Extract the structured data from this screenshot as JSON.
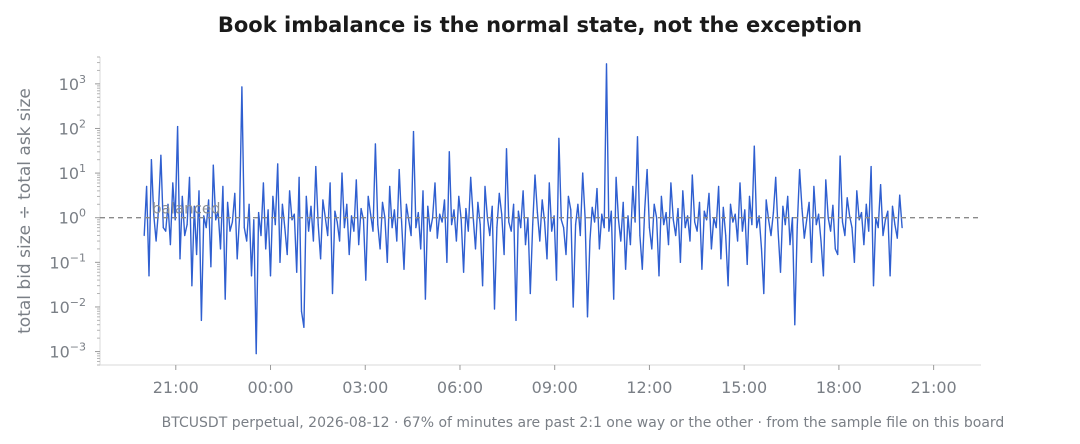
{
  "chart_data": {
    "type": "line",
    "title": "Book imbalance is the normal state, not the exception",
    "ylabel": "total bid size ÷ total ask size",
    "xlabel": "",
    "footnote": "BTCUSDT perpetual, 2026-08-12  ·  67% of minutes are past 2:1 one way or the other  ·  from the sample file on this board",
    "y_scale": "log",
    "ylim": [
      0.0005,
      4000
    ],
    "y_ticks": [
      {
        "base": "10",
        "exp": "3",
        "value": 1000
      },
      {
        "base": "10",
        "exp": "2",
        "value": 100
      },
      {
        "base": "10",
        "exp": "1",
        "value": 10
      },
      {
        "base": "10",
        "exp": "0",
        "value": 1
      },
      {
        "base": "10",
        "exp": "−1",
        "value": 0.1
      },
      {
        "base": "10",
        "exp": "−2",
        "value": 0.01
      },
      {
        "base": "10",
        "exp": "−3",
        "value": 0.001
      }
    ],
    "x_ticks": [
      "21:00",
      "00:00",
      "03:00",
      "06:00",
      "09:00",
      "12:00",
      "15:00",
      "18:00",
      "21:00"
    ],
    "x_tick_hours": [
      21,
      24,
      27,
      30,
      33,
      36,
      39,
      42,
      45
    ],
    "xlim_hours": [
      18.6,
      46.5
    ],
    "reference_line": {
      "value": 1,
      "label": "balanced",
      "style": "dashed"
    },
    "series": [
      {
        "color": "#2f5fd0",
        "x_start": "2026-08-12 20:00",
        "x_end": "2026-08-13 20:00",
        "interval": "1 min",
        "values": [
          0.4,
          5.0,
          0.05,
          20.0,
          1.2,
          0.3,
          1.5,
          25.0,
          0.6,
          0.5,
          2.0,
          0.25,
          6.0,
          0.9,
          110.0,
          0.12,
          3.0,
          0.4,
          0.7,
          8.0,
          0.03,
          1.8,
          0.15,
          4.0,
          0.005,
          1.1,
          0.6,
          2.5,
          0.08,
          15.0,
          0.9,
          1.4,
          0.2,
          5.0,
          0.015,
          2.2,
          0.5,
          0.8,
          3.5,
          0.12,
          1.0,
          850.0,
          0.6,
          0.3,
          2.0,
          0.05,
          0.9,
          0.0009,
          1.3,
          0.4,
          6.0,
          0.2,
          1.5,
          0.05,
          3.0,
          0.7,
          16.0,
          0.1,
          2.0,
          0.6,
          0.15,
          4.0,
          0.9,
          1.2,
          0.06,
          8.0,
          0.008,
          0.0035,
          3.0,
          0.5,
          1.8,
          0.3,
          14.0,
          0.7,
          0.12,
          2.5,
          1.0,
          0.4,
          6.0,
          0.02,
          1.4,
          0.8,
          0.3,
          10.0,
          0.6,
          2.0,
          0.15,
          1.1,
          0.5,
          7.0,
          0.25,
          1.6,
          0.9,
          0.04,
          3.0,
          1.2,
          0.5,
          45.0,
          0.7,
          0.2,
          2.2,
          1.0,
          0.1,
          5.0,
          0.6,
          1.5,
          0.3,
          12.0,
          0.8,
          0.07,
          2.0,
          0.9,
          0.4,
          85.0,
          0.6,
          1.3,
          0.2,
          4.0,
          0.015,
          1.8,
          0.5,
          1.0,
          6.0,
          0.35,
          1.2,
          0.8,
          2.5,
          0.1,
          30.0,
          0.7,
          1.5,
          0.3,
          3.0,
          0.9,
          0.06,
          1.6,
          0.5,
          8.0,
          1.1,
          0.2,
          2.2,
          0.7,
          0.03,
          5.0,
          1.0,
          0.4,
          1.8,
          0.009,
          0.6,
          3.5,
          1.2,
          0.15,
          35.0,
          0.8,
          0.5,
          2.0,
          0.005,
          1.4,
          0.6,
          4.0,
          0.25,
          1.0,
          0.02,
          0.7,
          9.0,
          1.3,
          0.3,
          2.5,
          0.8,
          0.12,
          6.0,
          0.5,
          1.1,
          0.04,
          60.0,
          0.9,
          0.6,
          0.15,
          3.0,
          1.5,
          0.01,
          0.7,
          2.0,
          0.4,
          10.0,
          1.0,
          0.006,
          0.3,
          1.7,
          0.8,
          4.5,
          0.2,
          1.2,
          0.6,
          2800.0,
          0.5,
          1.4,
          0.015,
          8.0,
          0.9,
          0.3,
          2.2,
          0.07,
          1.1,
          0.25,
          5.0,
          0.8,
          65.0,
          0.4,
          0.07,
          1.5,
          12.0,
          0.6,
          0.2,
          2.0,
          1.0,
          0.05,
          3.0,
          0.7,
          1.3,
          0.25,
          6.0,
          0.9,
          0.4,
          1.6,
          0.1,
          4.0,
          0.6,
          1.1,
          0.3,
          9.0,
          0.8,
          0.5,
          2.2,
          0.07,
          1.4,
          0.9,
          3.5,
          0.2,
          1.0,
          0.6,
          5.0,
          0.12,
          1.7,
          0.4,
          0.03,
          2.0,
          0.8,
          1.2,
          0.3,
          6.0,
          0.5,
          1.5,
          0.09,
          3.0,
          0.7,
          40.0,
          0.6,
          1.1,
          0.2,
          0.02,
          2.5,
          0.9,
          0.4,
          1.3,
          8.0,
          0.5,
          0.06,
          1.8,
          0.7,
          3.0,
          0.25,
          1.0,
          0.004,
          0.6,
          12.0,
          1.6,
          0.35,
          0.9,
          2.2,
          0.1,
          5.0,
          0.7,
          1.2,
          0.3,
          0.05,
          7.0,
          1.0,
          0.5,
          1.9,
          0.2,
          0.15,
          24.0,
          0.8,
          0.4,
          2.8,
          1.1,
          0.6,
          0.1,
          4.0,
          0.9,
          1.3,
          0.25,
          2.0,
          0.5,
          14.0,
          0.03,
          1.0,
          0.6,
          5.5,
          0.4,
          0.9,
          1.4,
          0.05,
          1.8,
          0.7,
          0.35,
          3.2,
          0.6
        ]
      }
    ]
  }
}
